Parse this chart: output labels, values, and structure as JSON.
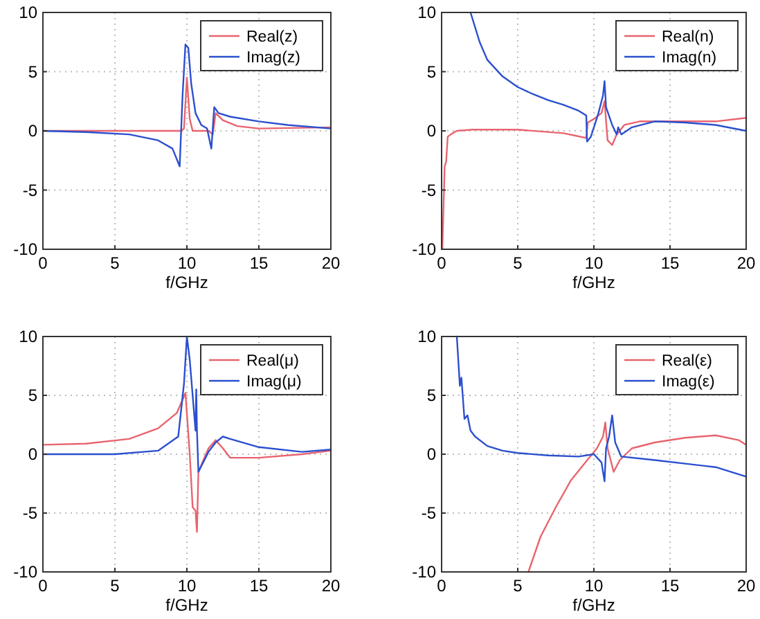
{
  "chart_data": [
    {
      "type": "line",
      "xlabel": "f/GHz",
      "xlim": [
        0,
        20
      ],
      "ylim": [
        -10,
        10
      ],
      "xticks": [
        0,
        5,
        10,
        15,
        20
      ],
      "yticks": [
        -10,
        -5,
        0,
        5,
        10
      ],
      "grid": true,
      "legend": "top right",
      "line_style": "solid",
      "series": [
        {
          "name": "Real(z)",
          "color": "#e8646e",
          "x": [
            0,
            3,
            6,
            9,
            9.6,
            9.8,
            10,
            10.2,
            10.4,
            11.5,
            11.8,
            12,
            12.5,
            13.5,
            15,
            20
          ],
          "values": [
            0,
            0,
            0,
            0,
            0,
            0.2,
            4.5,
            1,
            0,
            0,
            -0.3,
            1.5,
            0.9,
            0.4,
            0.2,
            0.3
          ]
        },
        {
          "name": "Imag(z)",
          "color": "#2b4fcf",
          "x": [
            0,
            3,
            6,
            8,
            9,
            9.5,
            9.6,
            9.7,
            9.9,
            10.1,
            10.3,
            10.6,
            11,
            11.4,
            11.7,
            11.9,
            12.2,
            13,
            15,
            17,
            20
          ],
          "values": [
            0,
            -0.1,
            -0.3,
            -0.8,
            -1.5,
            -3,
            0,
            3,
            7.3,
            7,
            4,
            1.5,
            0.5,
            0.2,
            -1.5,
            2,
            1.5,
            1.2,
            0.8,
            0.5,
            0.2
          ]
        }
      ]
    },
    {
      "type": "line",
      "xlabel": "f/GHz",
      "xlim": [
        0,
        20
      ],
      "ylim": [
        -10,
        10
      ],
      "xticks": [
        0,
        5,
        10,
        15,
        20
      ],
      "yticks": [
        -10,
        -5,
        0,
        5,
        10
      ],
      "grid": true,
      "legend": "top right",
      "line_style": "solid",
      "series": [
        {
          "name": "Real(n)",
          "color": "#e8646e",
          "x": [
            0.05,
            0.2,
            0.3,
            0.4,
            0.6,
            1,
            2,
            5,
            8,
            9.5,
            9.6,
            10,
            10.5,
            10.7,
            10.9,
            11.2,
            11.5,
            12,
            13,
            15,
            18,
            20
          ],
          "values": [
            -10,
            -3,
            -2.6,
            -0.5,
            -0.3,
            0,
            0.1,
            0.1,
            -0.2,
            -0.6,
            0.7,
            1,
            1.5,
            2.5,
            -0.8,
            -1.2,
            -0.3,
            0.5,
            0.8,
            0.8,
            0.8,
            1.1
          ]
        },
        {
          "name": "Imag(n)",
          "color": "#2b4fcf",
          "x": [
            1.9,
            2.5,
            3,
            4,
            5,
            6,
            7,
            8,
            9,
            9.5,
            9.55,
            9.8,
            10.3,
            10.6,
            10.7,
            10.8,
            11.2,
            11.5,
            11.6,
            11.8,
            12.5,
            14,
            16,
            18,
            20
          ],
          "values": [
            10,
            7.5,
            6,
            4.6,
            3.7,
            3.1,
            2.6,
            2.2,
            1.7,
            1.3,
            -0.9,
            -0.5,
            1.5,
            3,
            4.2,
            2,
            0.5,
            -0.3,
            0.3,
            -0.3,
            0.3,
            0.8,
            0.7,
            0.5,
            0
          ]
        }
      ]
    },
    {
      "type": "line",
      "xlabel": "f/GHz",
      "xlim": [
        0,
        20
      ],
      "ylim": [
        -10,
        10
      ],
      "xticks": [
        0,
        5,
        10,
        15,
        20
      ],
      "yticks": [
        -10,
        -5,
        0,
        5,
        10
      ],
      "grid": true,
      "legend": "top right",
      "line_style": "solid",
      "series": [
        {
          "name": "Real(μ)",
          "color": "#e8646e",
          "x": [
            0,
            3,
            6,
            8,
            9.3,
            9.9,
            10.2,
            10.4,
            10.6,
            10.7,
            10.8,
            11.5,
            12,
            12.5,
            13,
            15,
            18,
            20
          ],
          "values": [
            0.8,
            0.9,
            1.3,
            2.2,
            3.5,
            5.2,
            0,
            -4.5,
            -4.8,
            -6.6,
            -1.5,
            0.5,
            1.2,
            0.5,
            -0.3,
            -0.3,
            0,
            0.3
          ]
        },
        {
          "name": "Imag(μ)",
          "color": "#2b4fcf",
          "x": [
            0,
            5,
            8,
            9.4,
            9.8,
            10,
            10.2,
            10.6,
            10.65,
            10.7,
            10.8,
            11.5,
            12,
            12.5,
            13,
            15,
            18,
            20
          ],
          "values": [
            0,
            0,
            0.3,
            1.5,
            6,
            10,
            8,
            2,
            5.5,
            2,
            -1.5,
            0.2,
            1,
            1.5,
            1.3,
            0.6,
            0.2,
            0.4
          ]
        }
      ]
    },
    {
      "type": "line",
      "xlabel": "f/GHz",
      "xlim": [
        0,
        20
      ],
      "ylim": [
        -10,
        10
      ],
      "xticks": [
        0,
        5,
        10,
        15,
        20
      ],
      "yticks": [
        -10,
        -5,
        0,
        5,
        10
      ],
      "grid": true,
      "legend": "top right",
      "line_style": "solid",
      "series": [
        {
          "name": "Real(ε)",
          "color": "#e8646e",
          "x": [
            5.7,
            6.5,
            7.5,
            8.5,
            9.5,
            10.2,
            10.6,
            10.75,
            10.9,
            11.3,
            11.7,
            12.5,
            14,
            16,
            18,
            19.5,
            20
          ],
          "values": [
            -10,
            -7,
            -4.5,
            -2.2,
            -0.6,
            0.5,
            1.5,
            2.7,
            0.5,
            -1.5,
            -0.5,
            0.5,
            1,
            1.4,
            1.6,
            1.2,
            0.8
          ]
        },
        {
          "name": "Imag(ε)",
          "color": "#2b4fcf",
          "x": [
            1,
            1.2,
            1.3,
            1.5,
            1.7,
            1.9,
            2.2,
            3,
            4,
            5,
            7,
            9,
            10,
            10.5,
            10.7,
            10.8,
            11,
            11.2,
            11.4,
            11.8,
            14,
            16,
            18,
            20
          ],
          "values": [
            10,
            5.8,
            6.5,
            3,
            3.3,
            2,
            1.5,
            0.7,
            0.3,
            0.1,
            -0.1,
            -0.2,
            0,
            -0.7,
            -2.3,
            0.5,
            1.5,
            3.3,
            1,
            -0.2,
            -0.5,
            -0.8,
            -1.1,
            -1.9
          ]
        }
      ]
    }
  ]
}
